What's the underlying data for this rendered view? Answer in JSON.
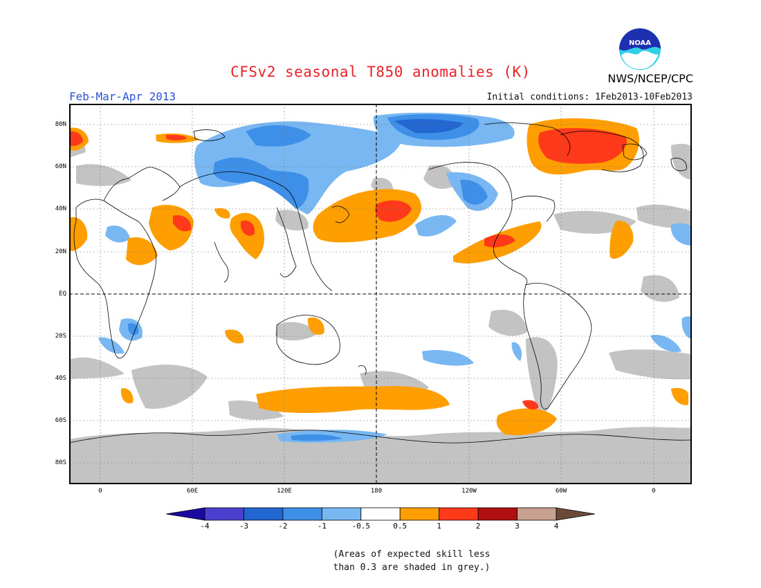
{
  "title": "CFSv2 seasonal T850 anomalies (K)",
  "period": "Feb-Mar-Apr 2013",
  "initial_conditions": "Initial conditions: 1Feb2013-10Feb2013",
  "agency": "NWS/NCEP/CPC",
  "logo_text": "NOAA",
  "lat_labels": [
    "80N",
    "60N",
    "40N",
    "20N",
    "EQ",
    "20S",
    "40S",
    "60S",
    "80S"
  ],
  "lon_labels": [
    "0",
    "60E",
    "120E",
    "180",
    "120W",
    "60W",
    "0"
  ],
  "colorbar": {
    "colors": [
      "#1c0aa0",
      "#4a3fcf",
      "#2166d1",
      "#3d8fe8",
      "#78b7f2",
      "#ffffff",
      "#ff9e00",
      "#ff3a1a",
      "#b01010",
      "#c8a090",
      "#6b4a3a"
    ],
    "ticks": [
      "-4",
      "-3",
      "-2",
      "-1",
      "-0.5",
      "0.5",
      "1",
      "2",
      "3",
      "4"
    ]
  },
  "note": {
    "line1": "(Areas of expected skill less",
    "line2": "than 0.3 are shaded in grey.)"
  },
  "legend_colors": {
    "grey_low_skill": "#c3c3c3",
    "warm_1": "#ff9e00",
    "warm_2": "#ff3a1a",
    "cold_1": "#78b7f2",
    "cold_2": "#3d8fe8",
    "cold_3": "#2166d1"
  }
}
